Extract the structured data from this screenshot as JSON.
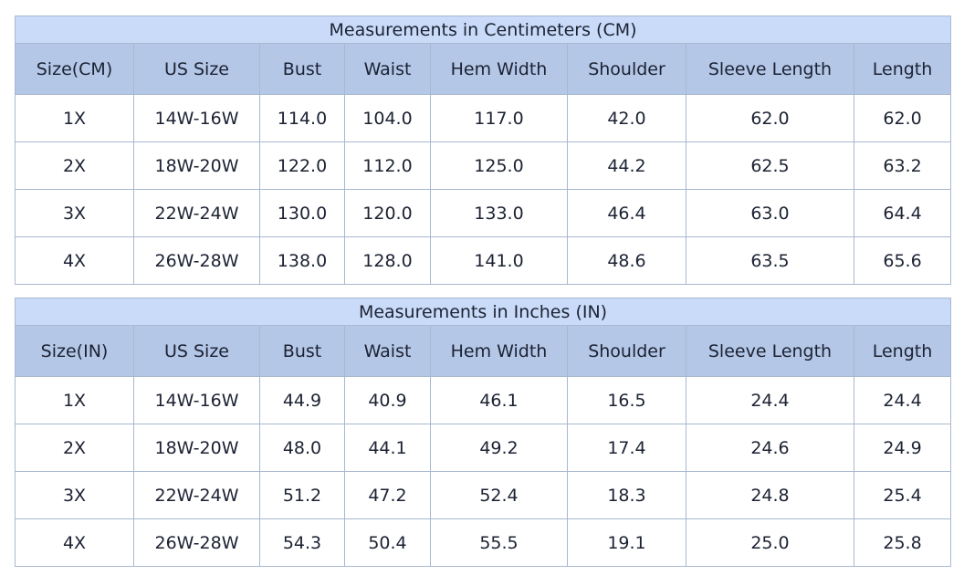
{
  "tables": [
    {
      "title": "Measurements in Centimeters (CM)",
      "header": [
        "Size(CM)",
        "US Size",
        "Bust",
        "Waist",
        "Hem Width",
        "Shoulder",
        "Sleeve Length",
        "Length"
      ],
      "rows": [
        [
          "1X",
          "14W-16W",
          "114.0",
          "104.0",
          "117.0",
          "42.0",
          "62.0",
          "62.0"
        ],
        [
          "2X",
          "18W-20W",
          "122.0",
          "112.0",
          "125.0",
          "44.2",
          "62.5",
          "63.2"
        ],
        [
          "3X",
          "22W-24W",
          "130.0",
          "120.0",
          "133.0",
          "46.4",
          "63.0",
          "64.4"
        ],
        [
          "4X",
          "26W-28W",
          "138.0",
          "128.0",
          "141.0",
          "48.6",
          "63.5",
          "65.6"
        ]
      ]
    },
    {
      "title": "Measurements in Inches (IN)",
      "header": [
        "Size(IN)",
        "US Size",
        "Bust",
        "Waist",
        "Hem Width",
        "Shoulder",
        "Sleeve Length",
        "Length"
      ],
      "rows": [
        [
          "1X",
          "14W-16W",
          "44.9",
          "40.9",
          "46.1",
          "16.5",
          "24.4",
          "24.4"
        ],
        [
          "2X",
          "18W-20W",
          "48.0",
          "44.1",
          "49.2",
          "17.4",
          "24.6",
          "24.9"
        ],
        [
          "3X",
          "22W-24W",
          "51.2",
          "47.2",
          "52.4",
          "18.3",
          "24.8",
          "25.4"
        ],
        [
          "4X",
          "26W-28W",
          "54.3",
          "50.4",
          "55.5",
          "19.1",
          "25.0",
          "25.8"
        ]
      ]
    }
  ]
}
